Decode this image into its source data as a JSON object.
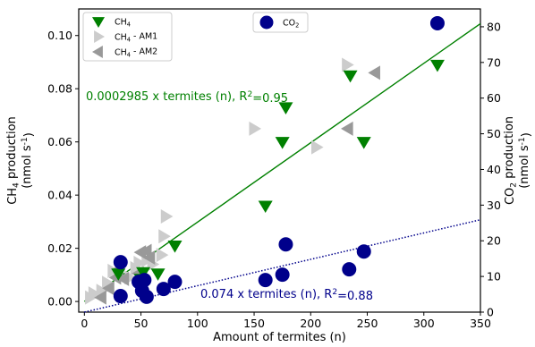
{
  "chart_data": {
    "type": "scatter",
    "xlabel": "Amount of termites (n)",
    "ylabel_left": "CH$_4$ production\n(nmol s$^{-1}$)",
    "ylabel_right": "CO$_2$ production\n(nmol s$^{-1}$)",
    "xlim": [
      -5,
      350
    ],
    "ylim_left": [
      -0.004,
      0.11
    ],
    "ylim_right": [
      0,
      85
    ],
    "x_ticks": [
      0,
      50,
      100,
      150,
      200,
      250,
      300,
      350
    ],
    "x_tick_labels": [
      "0",
      "50",
      "100",
      "150",
      "200",
      "250",
      "300",
      "350"
    ],
    "y_left_ticks": [
      0.0,
      0.02,
      0.04,
      0.06,
      0.08,
      0.1
    ],
    "y_left_tick_labels": [
      "0.00",
      "0.02",
      "0.04",
      "0.06",
      "0.08",
      "0.10"
    ],
    "y_right_ticks": [
      0,
      10,
      20,
      30,
      40,
      50,
      60,
      70,
      80
    ],
    "y_right_tick_labels": [
      "0",
      "10",
      "20",
      "30",
      "40",
      "50",
      "60",
      "70",
      "80"
    ],
    "series": [
      {
        "name": "CH$_4$",
        "axis": "left",
        "marker": "triangle-down",
        "color": "#008000",
        "points": [
          [
            30,
            0.0105
          ],
          [
            50,
            0.0085
          ],
          [
            52,
            0.011
          ],
          [
            65,
            0.0105
          ],
          [
            80,
            0.021
          ],
          [
            160,
            0.036
          ],
          [
            175,
            0.06
          ],
          [
            178,
            0.073
          ],
          [
            235,
            0.085
          ],
          [
            247,
            0.06
          ],
          [
            312,
            0.089
          ]
        ]
      },
      {
        "name": "CH$_4$ - AM1",
        "axis": "left",
        "marker": "triangle-right",
        "color": "#cccccc",
        "points": [
          [
            5,
            0.0015
          ],
          [
            8,
            0.003
          ],
          [
            15,
            0.004
          ],
          [
            20,
            0.007
          ],
          [
            25,
            0.0115
          ],
          [
            40,
            0.009
          ],
          [
            45,
            0.0125
          ],
          [
            48,
            0.0145
          ],
          [
            55,
            0.0155
          ],
          [
            60,
            0.014
          ],
          [
            68,
            0.0175
          ],
          [
            70,
            0.0245
          ],
          [
            72,
            0.032
          ],
          [
            150,
            0.065
          ],
          [
            205,
            0.058
          ],
          [
            232,
            0.089
          ]
        ]
      },
      {
        "name": "CH$_4$ - AM2",
        "axis": "left",
        "marker": "triangle-left",
        "color": "#999999",
        "points": [
          [
            15,
            0.0015
          ],
          [
            22,
            0.005
          ],
          [
            28,
            0.009
          ],
          [
            30,
            0.012
          ],
          [
            35,
            0.0085
          ],
          [
            48,
            0.0105
          ],
          [
            50,
            0.0185
          ],
          [
            55,
            0.019
          ],
          [
            58,
            0.0165
          ],
          [
            233,
            0.065
          ],
          [
            257,
            0.086
          ]
        ]
      },
      {
        "name": "CO$_2$",
        "axis": "right",
        "marker": "circle",
        "color": "#00008b",
        "points": [
          [
            32,
            4.5
          ],
          [
            32,
            14.0
          ],
          [
            48,
            8.5
          ],
          [
            51,
            6.0
          ],
          [
            53,
            9.0
          ],
          [
            55,
            4.3
          ],
          [
            70,
            6.5
          ],
          [
            80,
            8.5
          ],
          [
            160,
            9.0
          ],
          [
            175,
            10.5
          ],
          [
            178,
            19.0
          ],
          [
            234,
            12.0
          ],
          [
            247,
            17.0
          ],
          [
            312,
            81.0
          ]
        ]
      }
    ],
    "fit_lines": [
      {
        "axis": "left",
        "color": "#008000",
        "style": "solid",
        "slope": 0.0002985,
        "x_range": [
          0,
          350
        ]
      },
      {
        "axis": "right",
        "color": "#00008b",
        "style": "dotted",
        "slope": 0.074,
        "x_range": [
          0,
          350
        ]
      }
    ],
    "annotations": [
      {
        "text_before": "0.0002985 x termites (n), R",
        "sup": "2",
        "text_after": "=0.95",
        "color": "#008000"
      },
      {
        "text_before": "0.074 x termites (n), R",
        "sup": "2",
        "text_after": "=0.88",
        "color": "#00008b"
      }
    ],
    "legend_left": {
      "placement": "upper-left",
      "entries": [
        "CH$_4$",
        "CH$_4$ - AM1",
        "CH$_4$ - AM2"
      ]
    },
    "legend_right": {
      "placement": "upper-center",
      "entries": [
        "CO$_2$"
      ]
    }
  }
}
